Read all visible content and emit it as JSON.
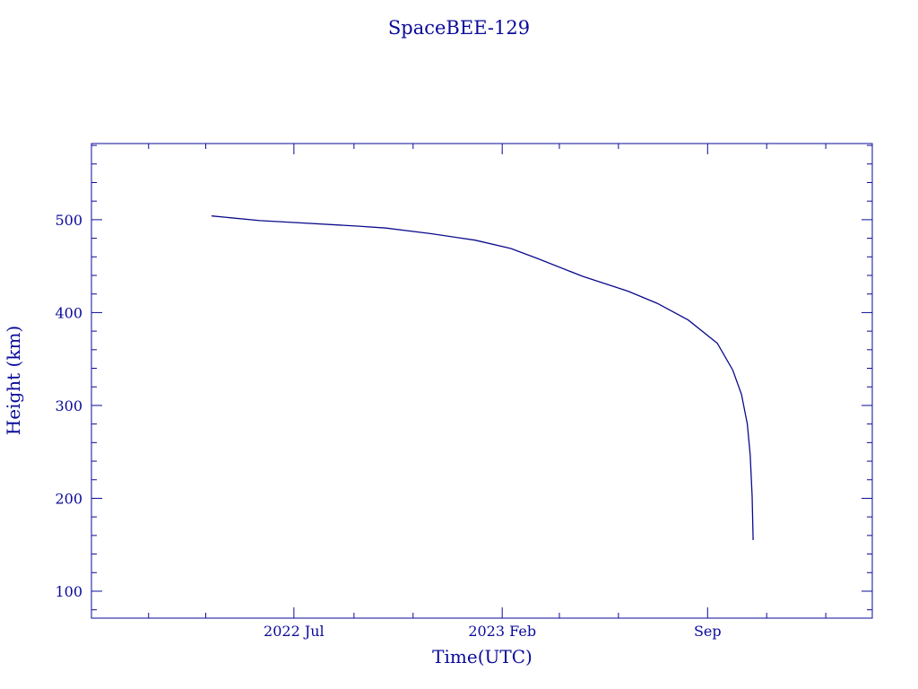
{
  "chart_data": {
    "type": "line",
    "title": "SpaceBEE-129",
    "xlabel": "Time(UTC)",
    "ylabel": "Height (km)",
    "xlim": [
      "2021-12-04",
      "2024-02-18"
    ],
    "ylim": [
      71,
      582
    ],
    "grid": false,
    "color": "#0a0a8c",
    "x_ticks": [
      {
        "date": "2022-07-01",
        "label": "2022 Jul"
      },
      {
        "date": "2023-02-01",
        "label": "2023 Feb"
      },
      {
        "date": "2023-09-01",
        "label": "Sep"
      }
    ],
    "x_minor_ticks": [
      "2022-02-01",
      "2022-04-01",
      "2022-09-01",
      "2022-11-01",
      "2023-04-01",
      "2023-06-01",
      "2023-11-01",
      "2024-01-01"
    ],
    "y_ticks": [
      100,
      200,
      300,
      400,
      500
    ],
    "series": [
      {
        "x": [
          "2022-04-07",
          "2022-05-27",
          "2022-07-01",
          "2022-09-06",
          "2022-10-04",
          "2022-11-19",
          "2023-01-04",
          "2023-02-10",
          "2023-03-10",
          "2023-04-25",
          "2023-06-11",
          "2023-07-11",
          "2023-08-12",
          "2023-09-11",
          "2023-09-27",
          "2023-10-06",
          "2023-10-12",
          "2023-10-15",
          "2023-10-17",
          "2023-10-18"
        ],
        "y": [
          504,
          499,
          497,
          493,
          491,
          485,
          478,
          469,
          458,
          439,
          423,
          410,
          392,
          367,
          338,
          312,
          280,
          247,
          202,
          155
        ]
      }
    ]
  }
}
